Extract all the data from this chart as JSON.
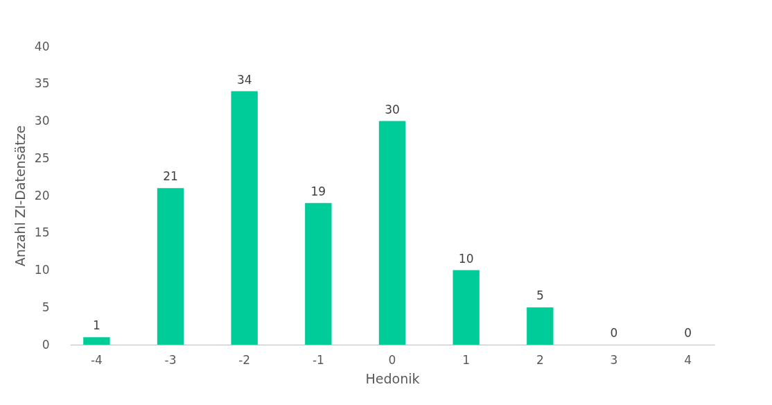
{
  "chart_data": {
    "type": "bar",
    "xlabel": "Hedonik",
    "ylabel": "Anzahl ZI-Datensätze",
    "categories": [
      "-4",
      "-3",
      "-2",
      "-1",
      "0",
      "1",
      "2",
      "3",
      "4"
    ],
    "values": [
      1,
      21,
      34,
      19,
      30,
      10,
      5,
      0,
      0
    ],
    "color": "#00cc99",
    "ylim": [
      0,
      40
    ],
    "yticks": [
      0,
      5,
      10,
      15,
      20,
      25,
      30,
      35,
      40
    ],
    "grid": false,
    "data_labels": true
  }
}
